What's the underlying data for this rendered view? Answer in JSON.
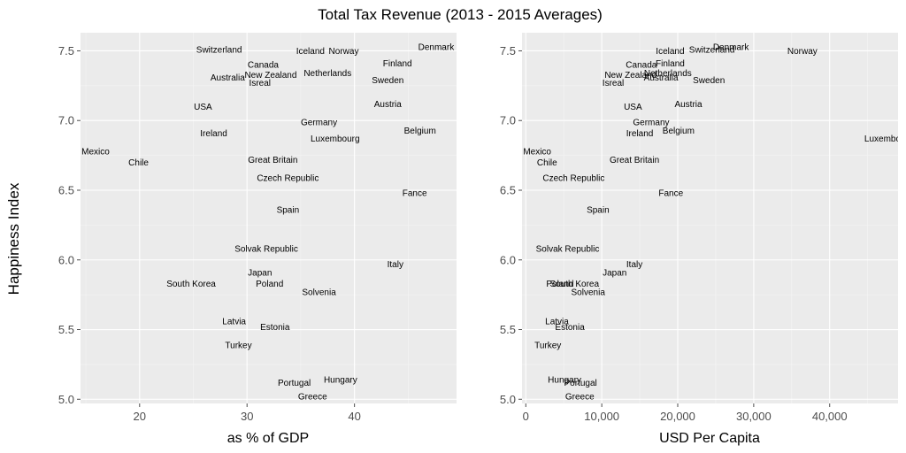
{
  "chart_data": {
    "title": "Total Tax Revenue (2013 - 2015 Averages)",
    "ylabel": "Happiness Index",
    "panels": [
      {
        "type": "scatter",
        "xlabel": "as % of GDP",
        "xlim": [
          14.5,
          49.5
        ],
        "ylim": [
          4.97,
          7.63
        ],
        "xticks": [
          20,
          30,
          40
        ],
        "xtick_labels": [
          "20",
          "30",
          "40"
        ],
        "yticks": [
          5.0,
          5.5,
          6.0,
          6.5,
          7.0,
          7.5
        ],
        "ytick_labels": [
          "5.0",
          "5.5",
          "6.0",
          "6.5",
          "7.0",
          "7.5"
        ],
        "points": [
          {
            "label": "Denmark",
            "x": 47.6,
            "y": 7.53
          },
          {
            "label": "Switzerland",
            "x": 27.4,
            "y": 7.51
          },
          {
            "label": "Iceland",
            "x": 35.9,
            "y": 7.5
          },
          {
            "label": "Norway",
            "x": 39.0,
            "y": 7.5
          },
          {
            "label": "Finland",
            "x": 44.0,
            "y": 7.41
          },
          {
            "label": "Canada",
            "x": 31.5,
            "y": 7.4
          },
          {
            "label": "New Zealand",
            "x": 32.2,
            "y": 7.33
          },
          {
            "label": "Netherlands",
            "x": 37.5,
            "y": 7.34
          },
          {
            "label": "Australia",
            "x": 28.2,
            "y": 7.31
          },
          {
            "label": "Sweden",
            "x": 43.1,
            "y": 7.29
          },
          {
            "label": "Isreal",
            "x": 31.2,
            "y": 7.27
          },
          {
            "label": "USA",
            "x": 25.9,
            "y": 7.1
          },
          {
            "label": "Austria",
            "x": 43.1,
            "y": 7.12
          },
          {
            "label": "Germany",
            "x": 36.7,
            "y": 6.99
          },
          {
            "label": "Belgium",
            "x": 46.1,
            "y": 6.93
          },
          {
            "label": "Ireland",
            "x": 26.9,
            "y": 6.91
          },
          {
            "label": "Luxembourg",
            "x": 38.2,
            "y": 6.87
          },
          {
            "label": "Mexico",
            "x": 15.9,
            "y": 6.78
          },
          {
            "label": "Great Britain",
            "x": 32.4,
            "y": 6.72
          },
          {
            "label": "Chile",
            "x": 19.9,
            "y": 6.7
          },
          {
            "label": "Czech Republic",
            "x": 33.8,
            "y": 6.59
          },
          {
            "label": "Fance",
            "x": 45.6,
            "y": 6.48
          },
          {
            "label": "Spain",
            "x": 33.8,
            "y": 6.36
          },
          {
            "label": "Solvak Republic",
            "x": 31.8,
            "y": 6.08
          },
          {
            "label": "Italy",
            "x": 43.8,
            "y": 5.97
          },
          {
            "label": "Japan",
            "x": 31.2,
            "y": 5.91
          },
          {
            "label": "South Korea",
            "x": 24.8,
            "y": 5.83
          },
          {
            "label": "Poland",
            "x": 32.1,
            "y": 5.83
          },
          {
            "label": "Solvenia",
            "x": 36.7,
            "y": 5.77
          },
          {
            "label": "Latvia",
            "x": 28.8,
            "y": 5.56
          },
          {
            "label": "Estonia",
            "x": 32.6,
            "y": 5.52
          },
          {
            "label": "Turkey",
            "x": 29.2,
            "y": 5.39
          },
          {
            "label": "Hungary",
            "x": 38.7,
            "y": 5.14
          },
          {
            "label": "Portugal",
            "x": 34.4,
            "y": 5.12
          },
          {
            "label": "Greece",
            "x": 36.1,
            "y": 5.02
          }
        ]
      },
      {
        "type": "scatter",
        "xlabel": "USD Per Capita",
        "xlim": [
          -500,
          49000
        ],
        "ylim": [
          4.97,
          7.63
        ],
        "xticks": [
          0,
          10000,
          20000,
          30000,
          40000
        ],
        "xtick_labels": [
          "0",
          "10,000",
          "20,000",
          "30,000",
          "40,000"
        ],
        "yticks": [
          5.0,
          5.5,
          6.0,
          6.5,
          7.0,
          7.5
        ],
        "ytick_labels": [
          "5.0",
          "5.5",
          "6.0",
          "6.5",
          "7.0",
          "7.5"
        ],
        "points": [
          {
            "label": "Denmark",
            "x": 27000,
            "y": 7.53
          },
          {
            "label": "Switzerland",
            "x": 24500,
            "y": 7.51
          },
          {
            "label": "Iceland",
            "x": 19000,
            "y": 7.5
          },
          {
            "label": "Norway",
            "x": 36400,
            "y": 7.5
          },
          {
            "label": "Finland",
            "x": 19000,
            "y": 7.41
          },
          {
            "label": "Canada",
            "x": 15200,
            "y": 7.4
          },
          {
            "label": "New Zealand",
            "x": 13800,
            "y": 7.33
          },
          {
            "label": "Netherlands",
            "x": 18700,
            "y": 7.34
          },
          {
            "label": "Australia",
            "x": 17800,
            "y": 7.31
          },
          {
            "label": "Sweden",
            "x": 24100,
            "y": 7.29
          },
          {
            "label": "Isreal",
            "x": 11500,
            "y": 7.27
          },
          {
            "label": "USA",
            "x": 14100,
            "y": 7.1
          },
          {
            "label": "Austria",
            "x": 21400,
            "y": 7.12
          },
          {
            "label": "Germany",
            "x": 16500,
            "y": 6.99
          },
          {
            "label": "Belgium",
            "x": 20100,
            "y": 6.93
          },
          {
            "label": "Ireland",
            "x": 15000,
            "y": 6.91
          },
          {
            "label": "Luxembourg",
            "x": 47800,
            "y": 6.87
          },
          {
            "label": "Mexico",
            "x": 1500,
            "y": 6.78
          },
          {
            "label": "Great Britain",
            "x": 14300,
            "y": 6.72
          },
          {
            "label": "Chile",
            "x": 2800,
            "y": 6.7
          },
          {
            "label": "Czech Republic",
            "x": 6300,
            "y": 6.59
          },
          {
            "label": "Fance",
            "x": 19100,
            "y": 6.48
          },
          {
            "label": "Spain",
            "x": 9500,
            "y": 6.36
          },
          {
            "label": "Solvak Republic",
            "x": 5500,
            "y": 6.08
          },
          {
            "label": "Italy",
            "x": 14300,
            "y": 5.97
          },
          {
            "label": "Japan",
            "x": 11700,
            "y": 5.91
          },
          {
            "label": "South Korea",
            "x": 6400,
            "y": 5.83
          },
          {
            "label": "Poland",
            "x": 4500,
            "y": 5.83
          },
          {
            "label": "Solvenia",
            "x": 8200,
            "y": 5.77
          },
          {
            "label": "Latvia",
            "x": 4100,
            "y": 5.56
          },
          {
            "label": "Estonia",
            "x": 5800,
            "y": 5.52
          },
          {
            "label": "Turkey",
            "x": 2900,
            "y": 5.39
          },
          {
            "label": "Hungary",
            "x": 5100,
            "y": 5.14
          },
          {
            "label": "Portugal",
            "x": 7200,
            "y": 5.12
          },
          {
            "label": "Greece",
            "x": 7100,
            "y": 5.02
          }
        ]
      }
    ]
  }
}
